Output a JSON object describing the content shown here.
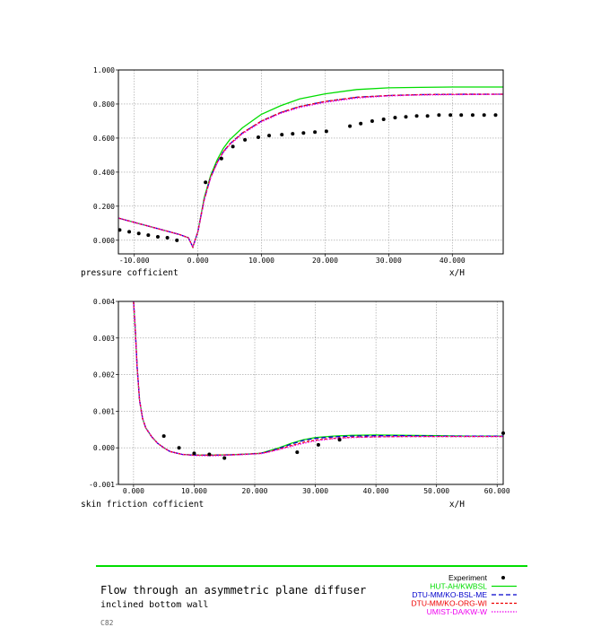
{
  "chart_data": [
    {
      "type": "line",
      "ylabel": "pressure cofficient",
      "xlabel": "x/H",
      "xlim": [
        -12.5,
        48
      ],
      "ylim": [
        -0.08,
        1.0
      ],
      "xticks": [
        -10,
        0,
        10,
        20,
        30,
        40
      ],
      "xtick_labels": [
        "-10.000",
        "0.000",
        "10.000",
        "20.000",
        "30.000",
        "40.000"
      ],
      "yticks": [
        0,
        0.2,
        0.4,
        0.6,
        0.8,
        1.0
      ],
      "ytick_labels": [
        "0.000",
        "0.200",
        "0.400",
        "0.600",
        "0.800",
        "1.000"
      ],
      "grid": true,
      "experiment": [
        [
          -12.3,
          0.06
        ],
        [
          -10.8,
          0.05
        ],
        [
          -9.3,
          0.04
        ],
        [
          -7.8,
          0.03
        ],
        [
          -6.3,
          0.02
        ],
        [
          -4.8,
          0.015
        ],
        [
          -3.3,
          0.0
        ],
        [
          1.2,
          0.34
        ],
        [
          3.7,
          0.48
        ],
        [
          5.5,
          0.55
        ],
        [
          7.4,
          0.59
        ],
        [
          9.5,
          0.605
        ],
        [
          11.2,
          0.615
        ],
        [
          13.2,
          0.62
        ],
        [
          14.9,
          0.625
        ],
        [
          16.6,
          0.63
        ],
        [
          18.4,
          0.635
        ],
        [
          20.2,
          0.64
        ],
        [
          23.9,
          0.67
        ],
        [
          25.6,
          0.685
        ],
        [
          27.4,
          0.7
        ],
        [
          29.2,
          0.71
        ],
        [
          31.0,
          0.72
        ],
        [
          32.7,
          0.725
        ],
        [
          34.4,
          0.73
        ],
        [
          36.1,
          0.73
        ],
        [
          37.9,
          0.735
        ],
        [
          39.7,
          0.735
        ],
        [
          41.4,
          0.735
        ],
        [
          43.2,
          0.735
        ],
        [
          45.0,
          0.735
        ],
        [
          46.8,
          0.735
        ]
      ],
      "series": [
        {
          "name": "HUT-AH/KWBSL",
          "color": "#00dd00",
          "dash": "",
          "x": [
            -12.5,
            -10,
            -7.5,
            -5,
            -3,
            -1.5,
            -0.8,
            0,
            1,
            2,
            3,
            4,
            5,
            7,
            10,
            13,
            16,
            20,
            25,
            30,
            35,
            40,
            48
          ],
          "y": [
            0.13,
            0.105,
            0.08,
            0.055,
            0.035,
            0.015,
            -0.04,
            0.05,
            0.25,
            0.38,
            0.47,
            0.54,
            0.59,
            0.66,
            0.74,
            0.79,
            0.83,
            0.86,
            0.885,
            0.895,
            0.898,
            0.9,
            0.9
          ]
        },
        {
          "name": "DTU-MM/KO-BSL-ME",
          "color": "#0000cc",
          "dash": "5,3",
          "x": [
            -12.5,
            -10,
            -7.5,
            -5,
            -3,
            -1.5,
            -0.8,
            0,
            1,
            2,
            3,
            4,
            5,
            7,
            10,
            13,
            16,
            20,
            25,
            30,
            35,
            40,
            48
          ],
          "y": [
            0.13,
            0.105,
            0.08,
            0.055,
            0.035,
            0.015,
            -0.04,
            0.05,
            0.24,
            0.37,
            0.455,
            0.52,
            0.565,
            0.63,
            0.7,
            0.75,
            0.785,
            0.815,
            0.84,
            0.85,
            0.855,
            0.857,
            0.858
          ]
        },
        {
          "name": "DTU-MM/KO-ORG-WI",
          "color": "#ee0000",
          "dash": "3,2",
          "x": [
            -12.5,
            -10,
            -7.5,
            -5,
            -3,
            -1.5,
            -0.8,
            0,
            1,
            2,
            3,
            4,
            5,
            7,
            10,
            13,
            16,
            20,
            25,
            30,
            35,
            40,
            48
          ],
          "y": [
            0.13,
            0.105,
            0.08,
            0.055,
            0.035,
            0.015,
            -0.04,
            0.05,
            0.24,
            0.37,
            0.455,
            0.52,
            0.565,
            0.63,
            0.7,
            0.75,
            0.785,
            0.815,
            0.84,
            0.85,
            0.855,
            0.857,
            0.858
          ]
        },
        {
          "name": "UMIST-DA/KW-W",
          "color": "#ee00ee",
          "dash": "1.5,1.5",
          "x": [
            -12.5,
            -10,
            -7.5,
            -5,
            -3,
            -1.5,
            -0.8,
            0,
            1,
            2,
            3,
            4,
            5,
            7,
            10,
            13,
            16,
            20,
            25,
            30,
            35,
            40,
            48
          ],
          "y": [
            0.13,
            0.105,
            0.08,
            0.055,
            0.035,
            0.015,
            -0.04,
            0.05,
            0.235,
            0.365,
            0.45,
            0.515,
            0.56,
            0.625,
            0.695,
            0.745,
            0.78,
            0.81,
            0.835,
            0.848,
            0.853,
            0.855,
            0.857
          ]
        }
      ]
    },
    {
      "type": "line",
      "ylabel": "skin friction cofficient",
      "xlabel": "x/H",
      "xlim": [
        -2.5,
        61
      ],
      "ylim": [
        -0.001,
        0.004
      ],
      "xticks": [
        0,
        10,
        20,
        30,
        40,
        50,
        60
      ],
      "xtick_labels": [
        "0.000",
        "10.000",
        "20.000",
        "30.000",
        "40.000",
        "50.000",
        "60.000"
      ],
      "yticks": [
        -0.001,
        0,
        0.001,
        0.002,
        0.003,
        0.004
      ],
      "ytick_labels": [
        "-0.001",
        "0.000",
        "0.001",
        "0.002",
        "0.003",
        "0.004"
      ],
      "grid": true,
      "experiment": [
        [
          5.0,
          0.00032
        ],
        [
          7.5,
          0.0
        ],
        [
          10.0,
          -0.00015
        ],
        [
          12.5,
          -0.00018
        ],
        [
          15.0,
          -0.00028
        ],
        [
          27.0,
          -0.00012
        ],
        [
          30.5,
          8e-05
        ],
        [
          34.0,
          0.00022
        ],
        [
          61.0,
          0.0004
        ]
      ],
      "series": [
        {
          "name": "HUT-AH/KWBSL",
          "color": "#00dd00",
          "dash": "",
          "x": [
            0,
            0.3,
            0.6,
            1,
            1.5,
            2,
            3,
            4,
            5,
            6,
            8,
            10,
            13,
            16,
            19,
            21,
            22,
            24,
            26,
            28,
            30,
            33,
            36,
            40,
            45,
            50,
            55,
            61
          ],
          "y": [
            0.004,
            0.0032,
            0.0022,
            0.0013,
            0.0008,
            0.00055,
            0.0003,
            0.00012,
            0.0,
            -0.0001,
            -0.00018,
            -0.0002,
            -0.0002,
            -0.00019,
            -0.00017,
            -0.00015,
            -0.0001,
            0.0,
            0.00012,
            0.00022,
            0.00028,
            0.00032,
            0.00034,
            0.00035,
            0.00034,
            0.00033,
            0.00032,
            0.00032
          ]
        },
        {
          "name": "DTU-MM/KO-BSL-ME",
          "color": "#0000cc",
          "dash": "5,3",
          "x": [
            0,
            0.3,
            0.6,
            1,
            1.5,
            2,
            3,
            4,
            5,
            6,
            8,
            10,
            13,
            16,
            19,
            21,
            22,
            24,
            26,
            28,
            30,
            33,
            36,
            40,
            45,
            50,
            55,
            61
          ],
          "y": [
            0.004,
            0.0032,
            0.0022,
            0.0013,
            0.0008,
            0.00055,
            0.0003,
            0.00012,
            0.0,
            -0.0001,
            -0.00018,
            -0.0002,
            -0.0002,
            -0.00019,
            -0.00017,
            -0.00015,
            -0.00011,
            -2e-05,
            0.0001,
            0.0002,
            0.00026,
            0.0003,
            0.00032,
            0.00033,
            0.00033,
            0.00032,
            0.00032,
            0.00032
          ]
        },
        {
          "name": "DTU-MM/KO-ORG-WI",
          "color": "#ee0000",
          "dash": "3,2",
          "x": [
            0,
            0.3,
            0.6,
            1,
            1.5,
            2,
            3,
            4,
            5,
            6,
            8,
            10,
            13,
            16,
            19,
            21,
            22,
            24,
            26,
            28,
            30,
            33,
            36,
            40,
            45,
            50,
            55,
            61
          ],
          "y": [
            0.004,
            0.0032,
            0.0022,
            0.0013,
            0.0008,
            0.00055,
            0.0003,
            0.00012,
            0.0,
            -0.0001,
            -0.00018,
            -0.0002,
            -0.0002,
            -0.00019,
            -0.00017,
            -0.00015,
            -0.00012,
            -4e-05,
            6e-05,
            0.00015,
            0.00021,
            0.00026,
            0.00029,
            0.0003,
            0.00031,
            0.00031,
            0.00031,
            0.00031
          ]
        },
        {
          "name": "UMIST-DA/KW-W",
          "color": "#ee00ee",
          "dash": "1.5,1.5",
          "x": [
            0,
            0.3,
            0.6,
            1,
            1.5,
            2,
            3,
            4,
            5,
            6,
            8,
            10,
            13,
            16,
            19,
            21,
            22,
            24,
            26,
            28,
            30,
            33,
            36,
            40,
            45,
            50,
            55,
            61
          ],
          "y": [
            0.004,
            0.0032,
            0.0022,
            0.0013,
            0.0008,
            0.00055,
            0.0003,
            0.00012,
            0.0,
            -0.0001,
            -0.00018,
            -0.00021,
            -0.00022,
            -0.0002,
            -0.00018,
            -0.00016,
            -0.00013,
            -5e-05,
            4e-05,
            0.00012,
            0.00019,
            0.00025,
            0.00028,
            0.0003,
            0.00031,
            0.00031,
            0.00031,
            0.00031
          ]
        }
      ]
    }
  ],
  "legend": {
    "items": [
      {
        "label": "Experiment",
        "color": "#000000",
        "marker": "dot"
      },
      {
        "label": "HUT-AH/KWBSL",
        "color": "#00dd00",
        "dash": ""
      },
      {
        "label": "DTU-MM/KO-BSL-ME",
        "color": "#0000cc",
        "dash": "5,3"
      },
      {
        "label": "DTU-MM/KO-ORG-WI",
        "color": "#ee0000",
        "dash": "3,2"
      },
      {
        "label": "UMIST-DA/KW-W",
        "color": "#ee00ee",
        "dash": "1.5,1.5"
      }
    ]
  },
  "footer": {
    "title": "Flow through an asymmetric plane diffuser",
    "subtitle": "inclined bottom wall",
    "code": "C82"
  }
}
